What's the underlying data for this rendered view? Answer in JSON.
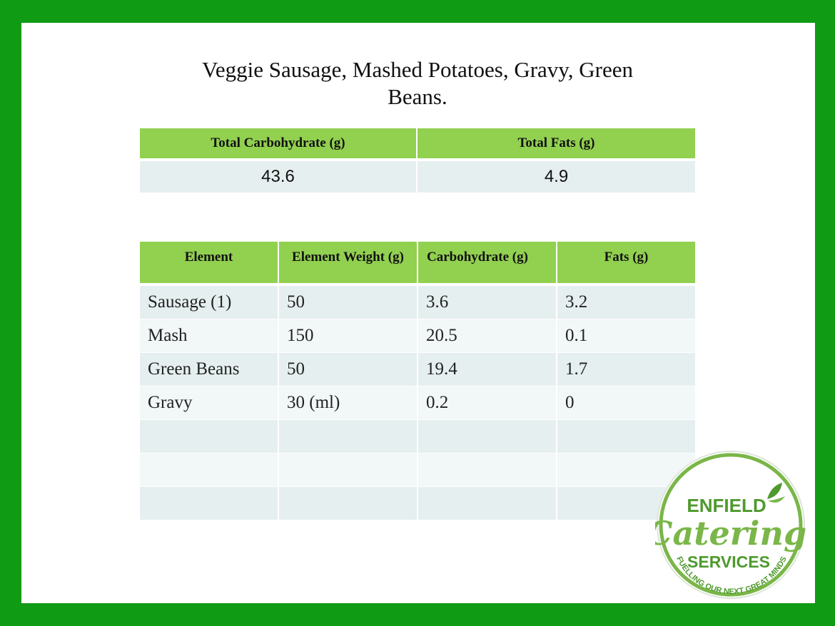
{
  "title": "Veggie Sausage, Mashed Potatoes, Gravy, Green Beans.",
  "summary": {
    "headers": [
      "Total Carbohydrate (g)",
      "Total Fats (g)"
    ],
    "values": [
      "43.6",
      "4.9"
    ]
  },
  "details": {
    "headers": [
      "Element",
      "Element Weight (g)",
      "Carbohydrate (g)",
      "Fats (g)"
    ],
    "rows": [
      [
        "Sausage (1)",
        "50",
        "3.6",
        "3.2"
      ],
      [
        "Mash",
        "150",
        "20.5",
        "0.1"
      ],
      [
        "Green Beans",
        "50",
        "19.4",
        "1.7"
      ],
      [
        "Gravy",
        "30 (ml)",
        "0.2",
        "0"
      ],
      [
        "",
        "",
        "",
        ""
      ],
      [
        "",
        "",
        "",
        ""
      ],
      [
        "",
        "",
        "",
        ""
      ]
    ]
  },
  "logo": {
    "line1": "ENFIELD",
    "line2": "Catering",
    "line3": "SERVICES",
    "tagline": "FUELLING OUR NEXT GREAT MINDS"
  },
  "colors": {
    "frame": "#109b14",
    "header_fill": "#92d050",
    "row_fill": "#e6efef",
    "logo_green": "#7ab648"
  }
}
